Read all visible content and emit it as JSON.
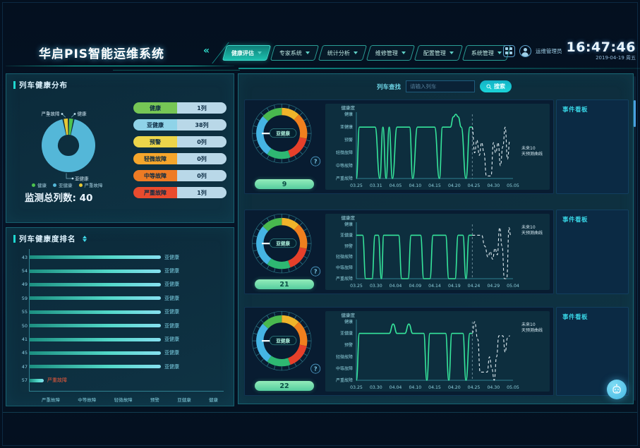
{
  "header": {
    "title": "华启PIS智能运维系统",
    "collapse_icon": "«",
    "nav": [
      {
        "label": "健康评估",
        "active": true
      },
      {
        "label": "专家系统",
        "active": false
      },
      {
        "label": "统计分析",
        "active": false
      },
      {
        "label": "维修管理",
        "active": false
      },
      {
        "label": "配置管理",
        "active": false
      },
      {
        "label": "系统管理",
        "active": false
      }
    ],
    "user": "运维管理员",
    "clock": {
      "time": "16:47:46",
      "date": "2019-04-19 周五"
    }
  },
  "distribution": {
    "title": "列车健康分布",
    "total": "监测总列数: 40",
    "donut": {
      "slices": [
        {
          "label": "健康",
          "trains": 1,
          "color": "#4cc24e"
        },
        {
          "label": "亚健康",
          "trains": 38,
          "color": "#54b7d8"
        },
        {
          "label": "严重故障",
          "trains": 1,
          "color": "#e6c735"
        }
      ]
    },
    "legend": [
      "健康",
      "亚健康",
      "严重故障"
    ],
    "legend_colors": [
      "#4cc24e",
      "#54b7d8",
      "#e6c735"
    ],
    "stats": [
      {
        "label": "健康",
        "count": "1列",
        "color": "#76c655"
      },
      {
        "label": "亚健康",
        "count": "38列",
        "color": "#8fd3e8"
      },
      {
        "label": "预警",
        "count": "0列",
        "color": "#ecd54a"
      },
      {
        "label": "轻微故障",
        "count": "0列",
        "color": "#f5a62c"
      },
      {
        "label": "中等故障",
        "count": "0列",
        "color": "#ee7b24"
      },
      {
        "label": "严重故障",
        "count": "1列",
        "color": "#e94b2e"
      }
    ]
  },
  "ranking": {
    "title": "列车健康度排名",
    "rows": [
      {
        "train": "43",
        "status": "亚健康",
        "len": 0.93
      },
      {
        "train": "54",
        "status": "亚健康",
        "len": 0.93
      },
      {
        "train": "49",
        "status": "亚健康",
        "len": 0.93
      },
      {
        "train": "59",
        "status": "亚健康",
        "len": 0.93
      },
      {
        "train": "55",
        "status": "亚健康",
        "len": 0.93
      },
      {
        "train": "50",
        "status": "亚健康",
        "len": 0.93
      },
      {
        "train": "41",
        "status": "亚健康",
        "len": 0.93
      },
      {
        "train": "45",
        "status": "亚健康",
        "len": 0.93
      },
      {
        "train": "47",
        "status": "亚健康",
        "len": 0.93
      },
      {
        "train": "57",
        "status": "严重故障",
        "len": 0.1,
        "status_color": "#f05a3a"
      }
    ],
    "axis_labels": [
      "严重故障",
      "中等故障",
      "轻微故障",
      "预警",
      "亚健康",
      "健康"
    ]
  },
  "search": {
    "label": "列车查找",
    "placeholder": "请输入列车",
    "button": "搜索"
  },
  "gauge_zones": [
    [
      0,
      42,
      "#f0b42a"
    ],
    [
      42,
      102,
      "#f07f1e"
    ],
    [
      102,
      160,
      "#e6402a"
    ],
    [
      160,
      215,
      "#2eb872"
    ],
    [
      215,
      312,
      "#45b4e4"
    ],
    [
      312,
      360,
      "#49b84e"
    ]
  ],
  "rows": [
    {
      "gauge": {
        "label": "亚健康",
        "value": "9",
        "help": "?"
      },
      "board_title": "事件看板"
    },
    {
      "gauge": {
        "label": "亚健康",
        "value": "21",
        "help": "?"
      },
      "board_title": "事件看板"
    },
    {
      "gauge": {
        "label": "亚健康",
        "value": "22",
        "help": "?"
      },
      "board_title": "事件看板"
    }
  ],
  "chart_data": [
    {
      "type": "line",
      "title": "健康度",
      "y_labels": [
        "健康",
        "亚健康",
        "预警",
        "轻微故障",
        "中等故障",
        "严重故障"
      ],
      "x_ticks": [
        "03.25",
        "03.31",
        "04.05",
        "04.10",
        "04.15",
        "04.20",
        "04.25",
        "04.30",
        "05.05"
      ],
      "annotation": "未来10天预测曲线",
      "annotation_pos": "mid",
      "divider_x": 0.74,
      "solid": [
        [
          0,
          5
        ],
        [
          0.02,
          1
        ],
        [
          0.12,
          1
        ],
        [
          0.15,
          5
        ],
        [
          0.17,
          1
        ],
        [
          0.19,
          5
        ],
        [
          0.21,
          1
        ],
        [
          0.23,
          5
        ],
        [
          0.26,
          1
        ],
        [
          0.34,
          1
        ],
        [
          0.36,
          5
        ],
        [
          0.39,
          1
        ],
        [
          0.5,
          1
        ],
        [
          0.53,
          5
        ],
        [
          0.55,
          1
        ],
        [
          0.6,
          1
        ],
        [
          0.62,
          0.2
        ],
        [
          0.635,
          0
        ],
        [
          0.65,
          0.2
        ],
        [
          0.67,
          1
        ],
        [
          0.7,
          5
        ],
        [
          0.725,
          1
        ],
        [
          0.74,
          1
        ]
      ],
      "dashed": [
        [
          0.74,
          1
        ],
        [
          0.755,
          3
        ],
        [
          0.77,
          2
        ],
        [
          0.785,
          3.2
        ],
        [
          0.8,
          2.2
        ],
        [
          0.815,
          3
        ],
        [
          0.83,
          4.8
        ],
        [
          0.86,
          4.8
        ],
        [
          0.875,
          2.2
        ],
        [
          0.89,
          3
        ],
        [
          0.905,
          2.2
        ],
        [
          0.92,
          4
        ],
        [
          0.935,
          2.5
        ],
        [
          0.95,
          1
        ],
        [
          0.965,
          3.5
        ],
        [
          0.98,
          2
        ]
      ]
    },
    {
      "type": "line",
      "title": "健康度",
      "y_labels": [
        "健康",
        "亚健康",
        "预警",
        "轻微故障",
        "中等故障",
        "严重故障"
      ],
      "x_ticks": [
        "03.25",
        "03.30",
        "04.04",
        "04.09",
        "04.14",
        "04.19",
        "04.24",
        "04.29",
        "05.04"
      ],
      "annotation": "未来10天预测曲线",
      "annotation_pos": "top",
      "divider_x": 0.74,
      "solid": [
        [
          0,
          1
        ],
        [
          0.04,
          1
        ],
        [
          0.06,
          5
        ],
        [
          0.1,
          5
        ],
        [
          0.12,
          1
        ],
        [
          0.14,
          1
        ],
        [
          0.16,
          5
        ],
        [
          0.175,
          1
        ],
        [
          0.19,
          1
        ],
        [
          0.27,
          1
        ],
        [
          0.29,
          5
        ],
        [
          0.33,
          5
        ],
        [
          0.35,
          1
        ],
        [
          0.41,
          1
        ],
        [
          0.43,
          5
        ],
        [
          0.47,
          5
        ],
        [
          0.49,
          1
        ],
        [
          0.57,
          1
        ],
        [
          0.59,
          5
        ],
        [
          0.63,
          5
        ],
        [
          0.65,
          1
        ],
        [
          0.68,
          1
        ],
        [
          0.7,
          5
        ],
        [
          0.72,
          1
        ],
        [
          0.74,
          1
        ]
      ],
      "dashed": [
        [
          0.74,
          1
        ],
        [
          0.8,
          1
        ],
        [
          0.82,
          2
        ],
        [
          0.84,
          3
        ],
        [
          0.855,
          2.5
        ],
        [
          0.87,
          3.2
        ],
        [
          0.885,
          2.2
        ],
        [
          0.9,
          2.8
        ],
        [
          0.915,
          0.3
        ],
        [
          0.93,
          2
        ],
        [
          0.945,
          5
        ],
        [
          0.96,
          5
        ],
        [
          0.975,
          0.3
        ],
        [
          0.985,
          1
        ]
      ]
    },
    {
      "type": "line",
      "title": "健康度",
      "y_labels": [
        "健康",
        "亚健康",
        "预警",
        "轻微故障",
        "中等故障",
        "严重故障"
      ],
      "x_ticks": [
        "03.25",
        "03.30",
        "04.04",
        "04.10",
        "04.15",
        "04.20",
        "04.25",
        "04.30",
        "05.05"
      ],
      "annotation": "未来10天预测曲线",
      "annotation_pos": "top",
      "divider_x": 0.74,
      "solid": [
        [
          0,
          5
        ],
        [
          0.02,
          1
        ],
        [
          0.21,
          1
        ],
        [
          0.235,
          0.2
        ],
        [
          0.26,
          1
        ],
        [
          0.31,
          1
        ],
        [
          0.335,
          0.2
        ],
        [
          0.36,
          1
        ],
        [
          0.43,
          1
        ],
        [
          0.45,
          5
        ],
        [
          0.47,
          1
        ],
        [
          0.57,
          1
        ],
        [
          0.59,
          5
        ],
        [
          0.61,
          1
        ],
        [
          0.68,
          1
        ],
        [
          0.7,
          5
        ],
        [
          0.725,
          1
        ],
        [
          0.74,
          1
        ]
      ],
      "dashed": [
        [
          0.74,
          1
        ],
        [
          0.755,
          0
        ],
        [
          0.775,
          1.5
        ],
        [
          0.79,
          4.3
        ],
        [
          0.835,
          4.3
        ],
        [
          0.85,
          3
        ],
        [
          0.865,
          4
        ],
        [
          0.88,
          5
        ],
        [
          0.895,
          3
        ],
        [
          0.91,
          1.2
        ],
        [
          0.935,
          1.2
        ],
        [
          0.95,
          2.6
        ],
        [
          0.965,
          1.4
        ],
        [
          0.98,
          1.2
        ]
      ]
    }
  ]
}
